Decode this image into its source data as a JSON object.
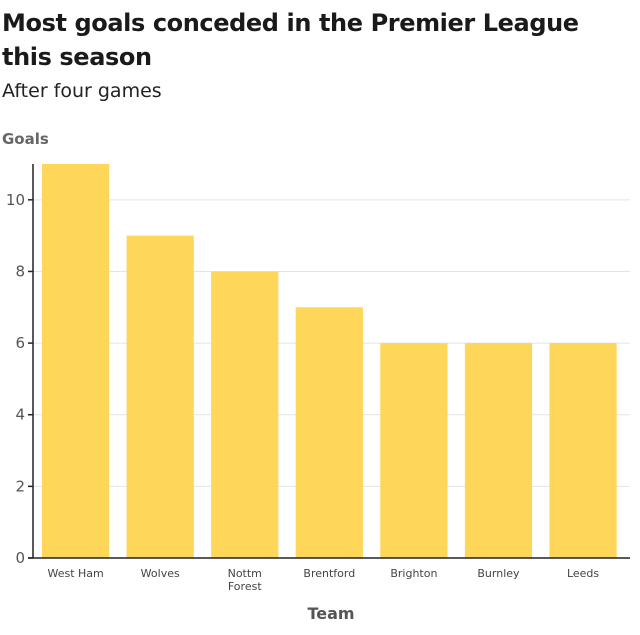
{
  "title": "Most goals conceded in the Premier League this season",
  "subtitle": "After four games",
  "chart_data": {
    "type": "bar",
    "title": "Most goals conceded in the Premier League this season",
    "subtitle": "After four games",
    "ylabel": "Goals",
    "xlabel": "Team",
    "categories": [
      "West Ham",
      "Wolves",
      "Nottm Forest",
      "Brentford",
      "Brighton",
      "Burnley",
      "Leeds"
    ],
    "category_lines": [
      [
        "West Ham"
      ],
      [
        "Wolves"
      ],
      [
        "Nottm",
        "Forest"
      ],
      [
        "Brentford"
      ],
      [
        "Brighton"
      ],
      [
        "Burnley"
      ],
      [
        "Leeds"
      ]
    ],
    "values": [
      11,
      9,
      8,
      7,
      6,
      6,
      6
    ],
    "ylim": [
      0,
      11
    ],
    "yticks": [
      0,
      2,
      4,
      6,
      8,
      10
    ],
    "grid": true,
    "bar_color": "#fdd65a"
  }
}
